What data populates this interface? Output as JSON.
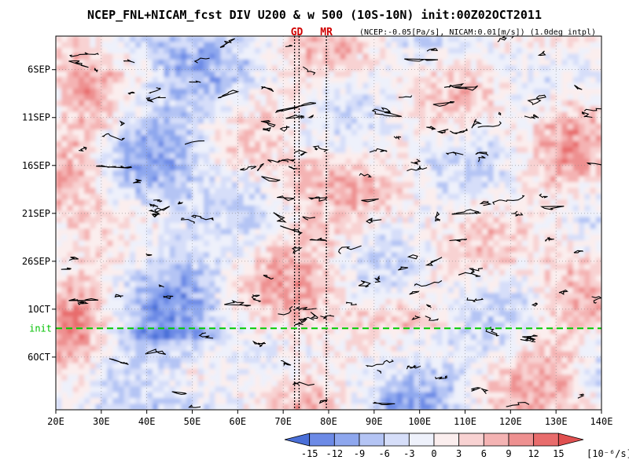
{
  "chart_data": {
    "type": "heatmap",
    "title": "NCEP_FNL+NICAM_fcst DIV U200 & w 500 (10S-10N) init:00Z02OCT2011",
    "subtitle": "(NCEP:-0.05[Pa/s], NICAM:0.01[m/s]) (1.0deg intpl)",
    "x_ticks": [
      "20E",
      "30E",
      "40E",
      "50E",
      "60E",
      "70E",
      "80E",
      "90E",
      "100E",
      "110E",
      "120E",
      "130E",
      "140E"
    ],
    "x_range": [
      20,
      140
    ],
    "y_ticks": [
      "6SEP",
      "11SEP",
      "16SEP",
      "21SEP",
      "26SEP",
      "1OCT",
      "6OCT"
    ],
    "y_range_days_after_1sep": [
      1.5,
      40.5
    ],
    "init_label": "init",
    "init_day": 32,
    "markers": [
      {
        "label": "GD",
        "lons": [
          72.5,
          73.5
        ]
      },
      {
        "label": "MR",
        "lons": [
          79.5
        ]
      }
    ],
    "colorbar": {
      "ticks": [
        "-15",
        "-12",
        "-9",
        "-6",
        "-3",
        "0",
        "3",
        "6",
        "9",
        "12",
        "15"
      ],
      "unit": "[10⁻⁶/s]",
      "colors": [
        "#4a6fd8",
        "#6c8ae6",
        "#8ea7ee",
        "#b4c4f4",
        "#d6def9",
        "#eef1fb",
        "#fbeeee",
        "#f8d2d2",
        "#f4b3b3",
        "#ee9090",
        "#e86c6c",
        "#e05050"
      ]
    },
    "colors": {
      "contour": "#000000",
      "init_line": "#00cc00",
      "marker_line": "#000000"
    }
  }
}
